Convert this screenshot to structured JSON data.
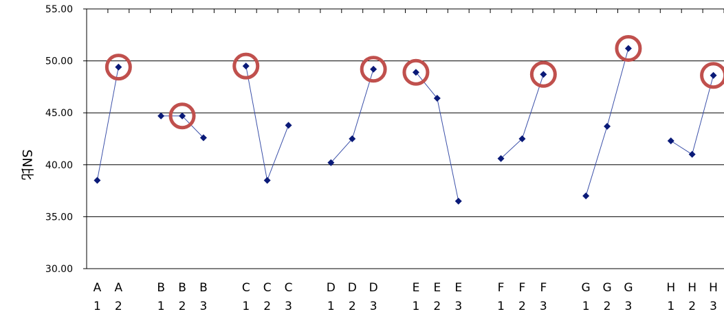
{
  "chart_data": {
    "type": "line",
    "title": "",
    "xlabel": "",
    "ylabel": "SN比",
    "ylim": [
      30,
      55
    ],
    "yticks": [
      "30.00",
      "35.00",
      "40.00",
      "45.00",
      "50.00",
      "55.00"
    ],
    "grid": true,
    "groups": [
      {
        "factor": "A",
        "levels": [
          "1",
          "2"
        ],
        "values": [
          38.5,
          49.4
        ],
        "best": 1
      },
      {
        "factor": "B",
        "levels": [
          "1",
          "2",
          "3"
        ],
        "values": [
          44.7,
          44.7,
          42.6
        ],
        "best": 1
      },
      {
        "factor": "C",
        "levels": [
          "1",
          "2",
          "3"
        ],
        "values": [
          49.5,
          38.5,
          43.8
        ],
        "best": 0
      },
      {
        "factor": "D",
        "levels": [
          "1",
          "2",
          "3"
        ],
        "values": [
          40.2,
          42.5,
          49.2
        ],
        "best": 2
      },
      {
        "factor": "E",
        "levels": [
          "1",
          "2",
          "3"
        ],
        "values": [
          48.9,
          46.4,
          36.5
        ],
        "best": 0
      },
      {
        "factor": "F",
        "levels": [
          "1",
          "2",
          "3"
        ],
        "values": [
          40.6,
          42.5,
          48.7
        ],
        "best": 2
      },
      {
        "factor": "G",
        "levels": [
          "1",
          "2",
          "3"
        ],
        "values": [
          37.0,
          43.7,
          51.2
        ],
        "best": 2
      },
      {
        "factor": "H",
        "levels": [
          "1",
          "2",
          "3"
        ],
        "values": [
          42.3,
          41.0,
          48.6
        ],
        "best": 2
      }
    ],
    "colors": {
      "line": "#3a4fa8",
      "marker": "#0a1a78",
      "highlight": "#c0504d",
      "grid": "#000000"
    }
  }
}
